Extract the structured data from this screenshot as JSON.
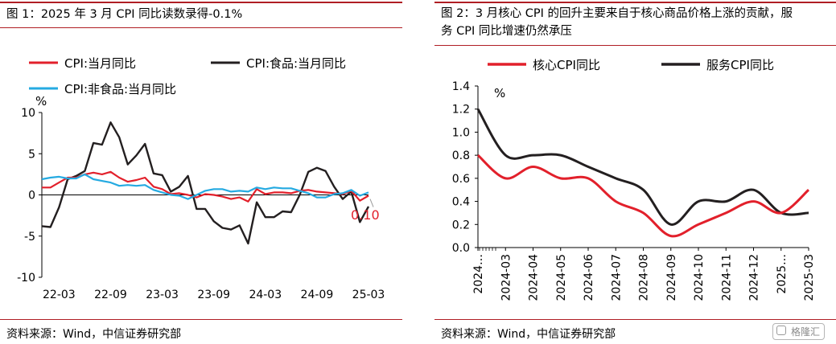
{
  "left": {
    "title": "图 1：2025 年 3 月 CPI 同比读数录得-0.1%",
    "source": "资料来源：Wind，中信证券研究部",
    "chart_data": {
      "type": "line",
      "ylabel": "%",
      "ylim": [
        -10,
        10
      ],
      "yticks": [
        "10",
        "5",
        "0",
        "-5",
        "-10"
      ],
      "xtick_labels": [
        "22-03",
        "22-09",
        "23-03",
        "23-09",
        "24-03",
        "24-09",
        "25-03"
      ],
      "x": [
        "2022-01",
        "2022-02",
        "2022-03",
        "2022-04",
        "2022-05",
        "2022-06",
        "2022-07",
        "2022-08",
        "2022-09",
        "2022-10",
        "2022-11",
        "2022-12",
        "2023-01",
        "2023-02",
        "2023-03",
        "2023-04",
        "2023-05",
        "2023-06",
        "2023-07",
        "2023-08",
        "2023-09",
        "2023-10",
        "2023-11",
        "2023-12",
        "2024-01",
        "2024-02",
        "2024-03",
        "2024-04",
        "2024-05",
        "2024-06",
        "2024-07",
        "2024-08",
        "2024-09",
        "2024-10",
        "2024-11",
        "2024-12",
        "2025-01",
        "2025-02",
        "2025-03"
      ],
      "series": [
        {
          "name": "CPI:当月同比",
          "color": "#e2202b",
          "values": [
            0.9,
            0.9,
            1.5,
            2.1,
            2.1,
            2.5,
            2.7,
            2.5,
            2.8,
            2.1,
            1.6,
            1.8,
            2.1,
            1.0,
            0.7,
            0.1,
            0.2,
            0.0,
            -0.3,
            0.1,
            0.0,
            -0.2,
            -0.5,
            -0.3,
            -0.8,
            0.7,
            0.1,
            0.3,
            0.3,
            0.2,
            0.5,
            0.6,
            0.4,
            0.3,
            0.2,
            0.1,
            0.5,
            -0.7,
            -0.1
          ]
        },
        {
          "name": "CPI:食品:当月同比",
          "color": "#231f20",
          "values": [
            -3.8,
            -3.9,
            -1.5,
            1.9,
            2.3,
            2.9,
            6.3,
            6.1,
            8.8,
            7.0,
            3.7,
            4.8,
            6.2,
            2.6,
            2.4,
            0.4,
            1.0,
            2.3,
            -1.7,
            -1.7,
            -3.2,
            -4.0,
            -4.2,
            -3.7,
            -5.9,
            -0.9,
            -2.7,
            -2.7,
            -2.0,
            -2.1,
            0.0,
            2.8,
            3.3,
            2.9,
            1.0,
            -0.5,
            0.4,
            -3.3,
            -1.4
          ]
        },
        {
          "name": "CPI:非食品:当月同比",
          "color": "#25aae1",
          "values": [
            1.9,
            2.1,
            2.2,
            2.0,
            2.0,
            2.5,
            1.9,
            1.7,
            1.5,
            1.1,
            1.2,
            1.1,
            1.2,
            0.6,
            0.3,
            0.0,
            -0.1,
            -0.5,
            0.0,
            0.5,
            0.7,
            0.7,
            0.4,
            0.5,
            0.4,
            0.9,
            0.7,
            0.9,
            0.8,
            0.8,
            0.5,
            0.2,
            -0.3,
            -0.3,
            0.1,
            0.2,
            0.6,
            -0.1,
            0.3
          ]
        }
      ],
      "annotation": "0.10"
    }
  },
  "right": {
    "title_line1": "图 2：3 月核心 CPI 的回升主要来自于核心商品价格上涨的贡献，服",
    "title_line2": "务 CPI 同比增速仍然承压",
    "source": "资料来源：Wind，中信证券研究部",
    "watermark": "格隆汇",
    "chart_data": {
      "type": "line",
      "ylabel": "%",
      "ylim": [
        0.0,
        1.4
      ],
      "yticks": [
        "1.4",
        "1.2",
        "1.0",
        "0.8",
        "0.6",
        "0.4",
        "0.2",
        "0.0"
      ],
      "categories": [
        "2024-02",
        "2024-03",
        "2024-04",
        "2024-05",
        "2024-06",
        "2024-07",
        "2024-08",
        "2024-09",
        "2024-10",
        "2024-11",
        "2024-12",
        "2025-02",
        "2025-03"
      ],
      "tick_labels": [
        "2024…",
        "2024-03",
        "2024-04",
        "2024-05",
        "2024-06",
        "2024-07",
        "2024-08",
        "2024-09",
        "2024-10",
        "2024-11",
        "2024-12",
        "2025…",
        "2025-03"
      ],
      "series": [
        {
          "name": "核心CPI同比",
          "color": "#e2202b",
          "values": [
            0.8,
            0.6,
            0.7,
            0.6,
            0.6,
            0.4,
            0.3,
            0.1,
            0.2,
            0.3,
            0.4,
            0.3,
            0.5
          ]
        },
        {
          "name": "服务CPI同比",
          "color": "#231f20",
          "values": [
            1.2,
            0.8,
            0.8,
            0.8,
            0.7,
            0.6,
            0.5,
            0.2,
            0.4,
            0.4,
            0.5,
            0.3,
            0.3
          ]
        }
      ]
    }
  }
}
